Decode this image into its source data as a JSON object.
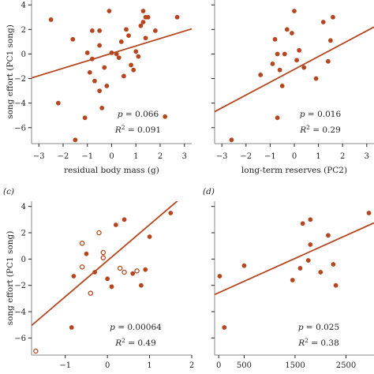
{
  "colors": {
    "accent": "#b5461f",
    "axis": "#222222",
    "frame": "#888888"
  },
  "chart_data": [
    {
      "panel": "a",
      "panel_label": "",
      "type": "scatter",
      "xlabel": "residual body mass (g)",
      "ylabel": "song effort (PC1 song)",
      "xlim": [
        -3.3,
        3.3
      ],
      "ylim": [
        -7.3,
        4.4
      ],
      "xticks": [
        "−3",
        "−2",
        "−1",
        "0",
        "1",
        "2",
        "3"
      ],
      "xtick_values": [
        -3,
        -2,
        -1,
        0,
        1,
        2,
        3
      ],
      "yticks": [
        "4",
        "2",
        "0",
        "−2",
        "−4",
        "−6"
      ],
      "ytick_values": [
        4,
        2,
        0,
        -2,
        -4,
        -6
      ],
      "fit": {
        "x": [
          -3.3,
          3.3
        ],
        "y": [
          -1.95,
          2.05
        ]
      },
      "stats": {
        "p": "0.066",
        "r2": "0.091"
      },
      "points": [
        {
          "x": -2.5,
          "y": 2.8
        },
        {
          "x": -1.6,
          "y": 1.2
        },
        {
          "x": -2.2,
          "y": -4.0
        },
        {
          "x": -1.0,
          "y": 0.1
        },
        {
          "x": -0.8,
          "y": 1.9
        },
        {
          "x": -0.5,
          "y": 1.9
        },
        {
          "x": -0.5,
          "y": 0.7
        },
        {
          "x": -0.8,
          "y": -0.4
        },
        {
          "x": -0.9,
          "y": -1.5
        },
        {
          "x": -0.7,
          "y": -2.2
        },
        {
          "x": -0.3,
          "y": -1.1
        },
        {
          "x": -0.2,
          "y": -2.6
        },
        {
          "x": -0.5,
          "y": -3.0
        },
        {
          "x": -0.4,
          "y": -4.4
        },
        {
          "x": -1.1,
          "y": -5.2
        },
        {
          "x": -1.5,
          "y": -7.0
        },
        {
          "x": -0.1,
          "y": 3.5
        },
        {
          "x": 0.0,
          "y": 0.1
        },
        {
          "x": 0.2,
          "y": 0.0
        },
        {
          "x": 0.3,
          "y": -0.3
        },
        {
          "x": 0.4,
          "y": 1.0
        },
        {
          "x": 0.6,
          "y": 2.0
        },
        {
          "x": 0.7,
          "y": 1.5
        },
        {
          "x": 0.8,
          "y": -0.9
        },
        {
          "x": 0.9,
          "y": -1.3
        },
        {
          "x": 1.0,
          "y": 0.2
        },
        {
          "x": 1.1,
          "y": -0.2
        },
        {
          "x": 0.5,
          "y": -1.8
        },
        {
          "x": 1.3,
          "y": 3.5
        },
        {
          "x": 1.4,
          "y": 3.0
        },
        {
          "x": 1.5,
          "y": 3.0
        },
        {
          "x": 1.4,
          "y": 1.3
        },
        {
          "x": 1.3,
          "y": 2.6
        },
        {
          "x": 1.8,
          "y": 1.9
        },
        {
          "x": 1.2,
          "y": 2.3
        },
        {
          "x": 2.7,
          "y": 3.0
        },
        {
          "x": 2.2,
          "y": -5.1
        }
      ]
    },
    {
      "panel": "b",
      "panel_label": "",
      "type": "scatter",
      "xlabel": "long-term reserves (PC2)",
      "ylabel": "",
      "xlim": [
        -3.3,
        3.3
      ],
      "ylim": [
        -7.3,
        4.4
      ],
      "xticks": [
        "−3",
        "−2",
        "−1",
        "0",
        "1",
        "2",
        "3"
      ],
      "xtick_values": [
        -3,
        -2,
        -1,
        0,
        1,
        2,
        3
      ],
      "yticks": [],
      "ytick_values": [
        4,
        2,
        0,
        -2,
        -4,
        -6
      ],
      "fit": {
        "x": [
          -3.3,
          3.3
        ],
        "y": [
          -4.7,
          2.2
        ]
      },
      "stats": {
        "p": "0.016",
        "r2": "0.29"
      },
      "points": [
        {
          "x": -2.6,
          "y": -7.0
        },
        {
          "x": -1.4,
          "y": -1.7
        },
        {
          "x": -0.9,
          "y": -0.8
        },
        {
          "x": -0.8,
          "y": 1.2
        },
        {
          "x": -0.7,
          "y": 0.0
        },
        {
          "x": -0.6,
          "y": -1.3
        },
        {
          "x": -0.4,
          "y": 0.0
        },
        {
          "x": -0.7,
          "y": -5.2
        },
        {
          "x": -0.5,
          "y": -2.6
        },
        {
          "x": -0.3,
          "y": 2.0
        },
        {
          "x": -0.1,
          "y": 1.7
        },
        {
          "x": 0.0,
          "y": 3.5
        },
        {
          "x": 0.1,
          "y": -0.5
        },
        {
          "x": 0.2,
          "y": 0.3
        },
        {
          "x": 0.4,
          "y": -1.1
        },
        {
          "x": 0.9,
          "y": -2.0
        },
        {
          "x": 1.2,
          "y": 2.6
        },
        {
          "x": 1.4,
          "y": -0.6
        },
        {
          "x": 1.5,
          "y": 1.1
        },
        {
          "x": 1.6,
          "y": 3.0
        }
      ]
    },
    {
      "panel": "c",
      "panel_label": "(c)",
      "type": "scatter",
      "xlabel": "",
      "ylabel": "song effort (PC1 song)",
      "xlim": [
        -1.8,
        2.0
      ],
      "ylim": [
        -7.3,
        4.4
      ],
      "xticks": [
        "−1",
        "0",
        "1",
        "2"
      ],
      "xtick_values": [
        -1,
        0,
        1,
        2
      ],
      "yticks": [
        "4",
        "2",
        "0",
        "−2",
        "−4",
        "−6"
      ],
      "ytick_values": [
        4,
        2,
        0,
        -2,
        -4,
        -6
      ],
      "fit": {
        "x": [
          -1.8,
          2.0
        ],
        "y": [
          -5.05,
          5.35
        ]
      },
      "stats": {
        "p": "0.00064",
        "r2": "0.49"
      },
      "points": [
        {
          "x": -1.7,
          "y": -7.0,
          "open": true
        },
        {
          "x": -0.85,
          "y": -5.2
        },
        {
          "x": -0.8,
          "y": -1.3
        },
        {
          "x": -0.6,
          "y": 1.2,
          "open": true
        },
        {
          "x": -0.6,
          "y": -0.6,
          "open": true
        },
        {
          "x": -0.5,
          "y": 0.4
        },
        {
          "x": -0.4,
          "y": -2.6,
          "open": true
        },
        {
          "x": -0.3,
          "y": -1.0
        },
        {
          "x": -0.2,
          "y": 2.0,
          "open": true
        },
        {
          "x": -0.1,
          "y": 0.5,
          "open": true
        },
        {
          "x": -0.1,
          "y": 0.1,
          "open": true
        },
        {
          "x": 0.0,
          "y": -1.5
        },
        {
          "x": 0.1,
          "y": -2.1
        },
        {
          "x": 0.2,
          "y": 2.6
        },
        {
          "x": 0.3,
          "y": -0.7,
          "open": true
        },
        {
          "x": 0.4,
          "y": -1.0,
          "open": true
        },
        {
          "x": 0.4,
          "y": 3.0
        },
        {
          "x": 0.6,
          "y": -1.1
        },
        {
          "x": 0.7,
          "y": -0.9,
          "open": true
        },
        {
          "x": 0.9,
          "y": -0.8
        },
        {
          "x": 0.8,
          "y": -2.0
        },
        {
          "x": 1.0,
          "y": 1.7
        },
        {
          "x": 1.5,
          "y": 3.5
        }
      ]
    },
    {
      "panel": "d",
      "panel_label": "(d)",
      "type": "scatter",
      "xlabel": "",
      "ylabel": "",
      "xlim": [
        -80,
        3050
      ],
      "ylim": [
        -7.3,
        4.4
      ],
      "xticks": [
        "0",
        "500",
        "1500",
        "2500"
      ],
      "xtick_values": [
        0,
        500,
        1500,
        2500
      ],
      "yticks": [],
      "ytick_values": [
        4,
        2,
        0,
        -2,
        -4,
        -6
      ],
      "fit": {
        "x": [
          -80,
          3050
        ],
        "y": [
          -2.7,
          2.75
        ]
      },
      "stats": {
        "p": "0.025",
        "r2": "0.38"
      },
      "points": [
        {
          "x": 20,
          "y": -1.3
        },
        {
          "x": 110,
          "y": -5.2
        },
        {
          "x": 500,
          "y": -0.5
        },
        {
          "x": 1450,
          "y": -1.6
        },
        {
          "x": 1600,
          "y": -0.7
        },
        {
          "x": 1650,
          "y": 2.7
        },
        {
          "x": 1800,
          "y": 3.0
        },
        {
          "x": 1800,
          "y": 1.1
        },
        {
          "x": 1760,
          "y": -0.1
        },
        {
          "x": 2000,
          "y": -1.0
        },
        {
          "x": 2150,
          "y": 1.8
        },
        {
          "x": 2250,
          "y": -0.4
        },
        {
          "x": 2300,
          "y": -2.0
        },
        {
          "x": 2950,
          "y": 3.5
        }
      ]
    }
  ]
}
